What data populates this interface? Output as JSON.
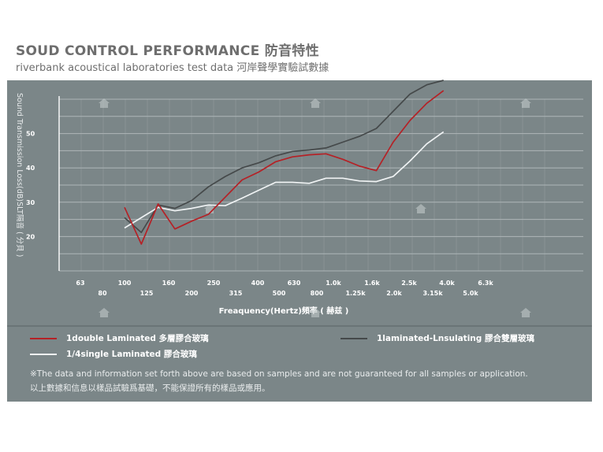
{
  "header": {
    "title": "SOUD CONTROL PERFORMANCE 防音特性",
    "subtitle": "riverbank acoustical laboratories test data 河岸聲學實驗試數據"
  },
  "chart_data": {
    "type": "line",
    "ylabel": "Sound Transmission Loss(dB)SLT隔音 ( 分貝 )",
    "xlabel": "Freaquency(Hertz)頻率 ( 赫兹 )",
    "y_ticks": [
      "20",
      "30",
      "40",
      "50"
    ],
    "ylim": [
      10,
      60
    ],
    "x_ticks_upper": [
      "63",
      "100",
      "160",
      "250",
      "400",
      "630",
      "1.0k",
      "1.6k",
      "2.5k",
      "4.0k",
      "6.3k"
    ],
    "x_ticks_lower": [
      "80",
      "125",
      "200",
      "315",
      "500",
      "800",
      "1.25k",
      "2.0k",
      "3.15k",
      "5.0k"
    ],
    "x": [
      "100",
      "125",
      "160",
      "200",
      "250",
      "315",
      "400",
      "500",
      "630",
      "800",
      "1.0k",
      "1.25k",
      "1.6k",
      "2.0k",
      "2.5k",
      "3.15k",
      "4.0k",
      "5.0k",
      "6.3k",
      "8.0k"
    ],
    "series": [
      {
        "name": "1double Laminated 多層膠合玻璃",
        "color": "#b52126",
        "values": [
          28.5,
          17.8,
          29.5,
          22.2,
          24.5,
          26.5,
          31.5,
          36.5,
          38.8,
          41.8,
          43.2,
          43.8,
          44.1,
          42.5,
          40.5,
          39.2,
          47.5,
          53.8,
          58.8,
          62.5
        ]
      },
      {
        "name": "1laminated-Lnsulating 膠合雙層玻璃",
        "color": "#45494a",
        "values": [
          25.5,
          21.2,
          29.2,
          28.2,
          30.5,
          34.5,
          37.5,
          40.0,
          41.5,
          43.5,
          44.8,
          45.2,
          45.8,
          47.5,
          49.2,
          51.5,
          56.5,
          61.5,
          64.2,
          65.5
        ]
      },
      {
        "name": "1/4single Laminated 膠合玻璃",
        "color": "#f0f3f4",
        "values": [
          22.5,
          25.5,
          28.5,
          27.5,
          28.2,
          29.2,
          29.0,
          31.2,
          33.5,
          35.8,
          35.8,
          35.5,
          37.0,
          37.0,
          36.2,
          36.0,
          37.5,
          42.0,
          47.0,
          50.5
        ]
      }
    ]
  },
  "footer": {
    "note_en": "※The data and information set forth above are based  on samples and are not guaranteed for all samples or application.",
    "note_zh": "以上數據和信息以樣品試驗爲基礎，不能保證所有的樣品或應用。"
  },
  "watermark_icon": "house-icon"
}
